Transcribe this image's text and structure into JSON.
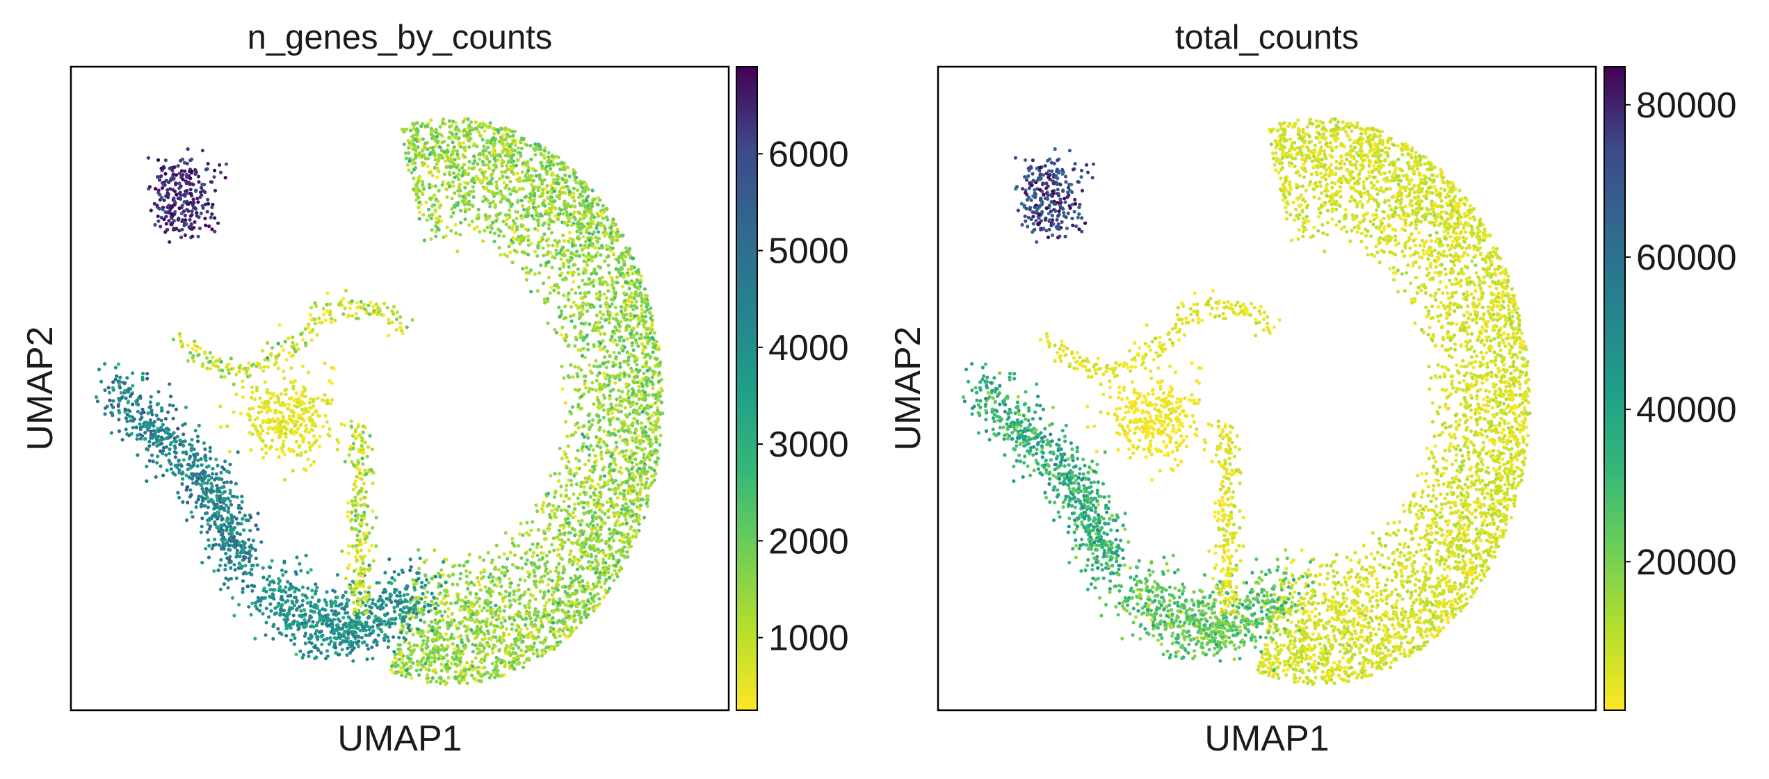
{
  "chart_data": [
    {
      "type": "scatter",
      "title": "n_genes_by_counts",
      "xlabel": "UMAP1",
      "ylabel": "UMAP2",
      "grid": false,
      "colormap": "viridis",
      "color_range": [
        250,
        6900
      ],
      "colorbar_ticks": [
        1000,
        2000,
        3000,
        4000,
        5000,
        6000
      ],
      "colorbar_tick_labels": [
        "1000",
        "2000",
        "3000",
        "4000",
        "5000",
        "6000"
      ],
      "clusters": [
        {
          "name": "main-arc",
          "level": 0.18,
          "spread": 0.08
        },
        {
          "name": "top-left-cluster",
          "level": 0.93,
          "spread": 0.05
        },
        {
          "name": "left-arm",
          "level": 0.62,
          "spread": 0.1
        },
        {
          "name": "bottom-lobe",
          "level": 0.55,
          "spread": 0.08
        },
        {
          "name": "center-blob",
          "level": 0.04,
          "spread": 0.03
        },
        {
          "name": "filaments",
          "level": 0.1,
          "spread": 0.1
        }
      ]
    },
    {
      "type": "scatter",
      "title": "total_counts",
      "xlabel": "UMAP1",
      "ylabel": "UMAP2",
      "grid": false,
      "colormap": "viridis",
      "color_range": [
        500,
        85000
      ],
      "colorbar_ticks": [
        20000,
        40000,
        60000,
        80000
      ],
      "colorbar_tick_labels": [
        "20000",
        "40000",
        "60000",
        "80000"
      ],
      "clusters": [
        {
          "name": "main-arc",
          "level": 0.07,
          "spread": 0.04
        },
        {
          "name": "top-left-cluster",
          "level": 0.85,
          "spread": 0.08
        },
        {
          "name": "left-arm",
          "level": 0.4,
          "spread": 0.1
        },
        {
          "name": "bottom-lobe",
          "level": 0.28,
          "spread": 0.08
        },
        {
          "name": "center-blob",
          "level": 0.02,
          "spread": 0.02
        },
        {
          "name": "filaments",
          "level": 0.05,
          "spread": 0.04
        }
      ]
    }
  ]
}
